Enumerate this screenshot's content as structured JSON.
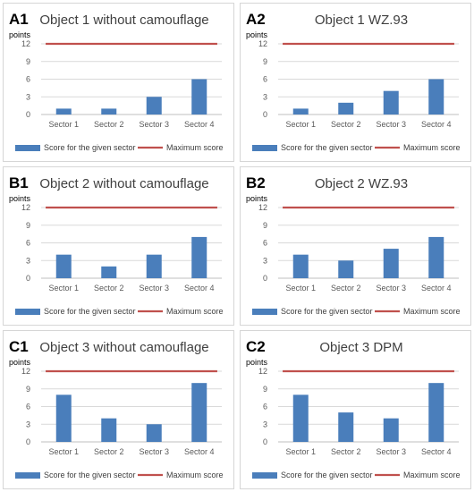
{
  "colors": {
    "bar": "#4a7ebb",
    "max_line": "#c0504d",
    "grid": "#d9d9d9",
    "axis": "#bfbfbf"
  },
  "chart_data": [
    {
      "panel": "A1",
      "type": "bar",
      "title": "Object 1 without camouflage",
      "ylabel": "points",
      "ylim": [
        0,
        12
      ],
      "yticks": [
        0,
        3,
        6,
        9,
        12
      ],
      "categories": [
        "Sector 1",
        "Sector 2",
        "Sector 3",
        "Sector 4"
      ],
      "series": [
        {
          "name": "Score for the given sector",
          "kind": "bar",
          "values": [
            1,
            1,
            3,
            6
          ]
        },
        {
          "name": "Maximum score",
          "kind": "line",
          "values": [
            12,
            12,
            12,
            12
          ]
        }
      ],
      "legend": "bottom",
      "grid": true
    },
    {
      "panel": "A2",
      "type": "bar",
      "title": "Object 1 WZ.93",
      "ylabel": "points",
      "ylim": [
        0,
        12
      ],
      "yticks": [
        0,
        3,
        6,
        9,
        12
      ],
      "categories": [
        "Sector 1",
        "Sector 2",
        "Sector 3",
        "Sector 4"
      ],
      "series": [
        {
          "name": "Score for the given sector",
          "kind": "bar",
          "values": [
            1,
            2,
            4,
            6
          ]
        },
        {
          "name": "Maximum score",
          "kind": "line",
          "values": [
            12,
            12,
            12,
            12
          ]
        }
      ],
      "legend": "bottom",
      "grid": true
    },
    {
      "panel": "B1",
      "type": "bar",
      "title": "Object 2 without camouflage",
      "ylabel": "points",
      "ylim": [
        0,
        12
      ],
      "yticks": [
        0,
        3,
        6,
        9,
        12
      ],
      "categories": [
        "Sector 1",
        "Sector 2",
        "Sector 3",
        "Sector 4"
      ],
      "series": [
        {
          "name": "Score for the given sector",
          "kind": "bar",
          "values": [
            4,
            2,
            4,
            7
          ]
        },
        {
          "name": "Maximum score",
          "kind": "line",
          "values": [
            12,
            12,
            12,
            12
          ]
        }
      ],
      "legend": "bottom",
      "grid": true
    },
    {
      "panel": "B2",
      "type": "bar",
      "title": "Object 2 WZ.93",
      "ylabel": "points",
      "ylim": [
        0,
        12
      ],
      "yticks": [
        0,
        3,
        6,
        9,
        12
      ],
      "categories": [
        "Sector 1",
        "Sector 2",
        "Sector 3",
        "Sector 4"
      ],
      "series": [
        {
          "name": "Score for the given sector",
          "kind": "bar",
          "values": [
            4,
            3,
            5,
            7
          ]
        },
        {
          "name": "Maximum score",
          "kind": "line",
          "values": [
            12,
            12,
            12,
            12
          ]
        }
      ],
      "legend": "bottom",
      "grid": true
    },
    {
      "panel": "C1",
      "type": "bar",
      "title": "Object 3 without camouflage",
      "ylabel": "points",
      "ylim": [
        0,
        12
      ],
      "yticks": [
        0,
        3,
        6,
        9,
        12
      ],
      "categories": [
        "Sector 1",
        "Sector 2",
        "Sector 3",
        "Sector 4"
      ],
      "series": [
        {
          "name": "Score for the given sector",
          "kind": "bar",
          "values": [
            8,
            4,
            3,
            10
          ]
        },
        {
          "name": "Maximum score",
          "kind": "line",
          "values": [
            12,
            12,
            12,
            12
          ]
        }
      ],
      "legend": "bottom",
      "grid": true
    },
    {
      "panel": "C2",
      "type": "bar",
      "title": "Object 3 DPM",
      "ylabel": "points",
      "ylim": [
        0,
        12
      ],
      "yticks": [
        0,
        3,
        6,
        9,
        12
      ],
      "categories": [
        "Sector 1",
        "Sector 2",
        "Sector 3",
        "Sector 4"
      ],
      "series": [
        {
          "name": "Score for the given sector",
          "kind": "bar",
          "values": [
            8,
            5,
            4,
            10
          ]
        },
        {
          "name": "Maximum score",
          "kind": "line",
          "values": [
            12,
            12,
            12,
            12
          ]
        }
      ],
      "legend": "bottom",
      "grid": true
    }
  ]
}
